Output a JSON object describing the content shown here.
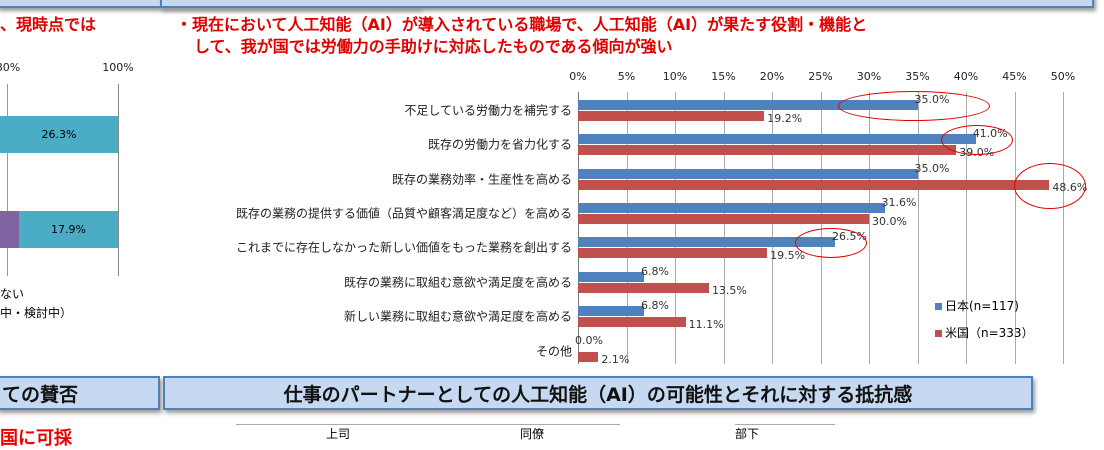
{
  "left_panel": {
    "subtitle_fragment": "、現時点では",
    "axis_ticks": [
      "80%",
      "100%"
    ],
    "bar_labels": [
      "26.3%",
      "17.9%"
    ],
    "legend_fragments": [
      "ない",
      "中・検討中）"
    ],
    "header_fragment": "ての賛否",
    "bottom_red_fragment": "国に可採"
  },
  "right_panel": {
    "subtitle": "・現在において人工知能（AI）が導入されている職場で、人工知能（AI）が果たす役割・機能として、我が国では労働力の手助けに対応したものである傾向が強い",
    "subtitle_line1": "・現在において人工知能（AI）が導入されている職場で、人工知能（AI）が果たす役割・機能と",
    "subtitle_line2": "して、我が国では労働力の手助けに対応したものである傾向が強い"
  },
  "bottom_header": "仕事のパートナーとしての人工知能（AI）の可能性とそれに対する抵抗感",
  "bottom_tabs": [
    "上司",
    "同僚",
    "部下"
  ],
  "chart_data": {
    "type": "bar",
    "orientation": "horizontal",
    "categories": [
      "不足している労働力を補完する",
      "既存の労働力を省力化する",
      "既存の業務効率・生産性を高める",
      "既存の業務の提供する価値（品質や顧客満足度など）を高める",
      "これまでに存在しなかった新しい価値をもった業務を創出する",
      "既存の業務に取組む意欲や満足度を高める",
      "新しい業務に取組む意欲や満足度を高める",
      "その他"
    ],
    "series": [
      {
        "name": "日本(n=117)",
        "color": "#4f81bd",
        "values": [
          35.0,
          41.0,
          35.0,
          31.6,
          26.5,
          6.8,
          6.8,
          0.0
        ],
        "labels": [
          "35.0%",
          "41.0%",
          "35.0%",
          "31.6%",
          "26.5%",
          "6.8%",
          "6.8%",
          "0.0%"
        ]
      },
      {
        "name": "米国（n=333）",
        "color": "#c0504d",
        "values": [
          19.2,
          39.0,
          48.6,
          30.0,
          19.5,
          13.5,
          11.1,
          2.1
        ],
        "labels": [
          "19.2%",
          "39.0%",
          "48.6%",
          "30.0%",
          "19.5%",
          "13.5%",
          "11.1%",
          "2.1%"
        ]
      }
    ],
    "xlim": [
      0,
      50
    ],
    "x_ticks": [
      "0%",
      "5%",
      "10%",
      "15%",
      "20%",
      "25%",
      "30%",
      "35%",
      "40%",
      "45%",
      "50%"
    ],
    "grid": true,
    "legend_position": "right",
    "highlighted": [
      "不足している労働力を補完する/日本",
      "既存の労働力を省力化する/日本",
      "既存の業務効率・生産性を高める/米国",
      "これまでに存在しなかった新しい価値をもった業務を創出する/日本"
    ],
    "highlight_color": "#e00000"
  }
}
